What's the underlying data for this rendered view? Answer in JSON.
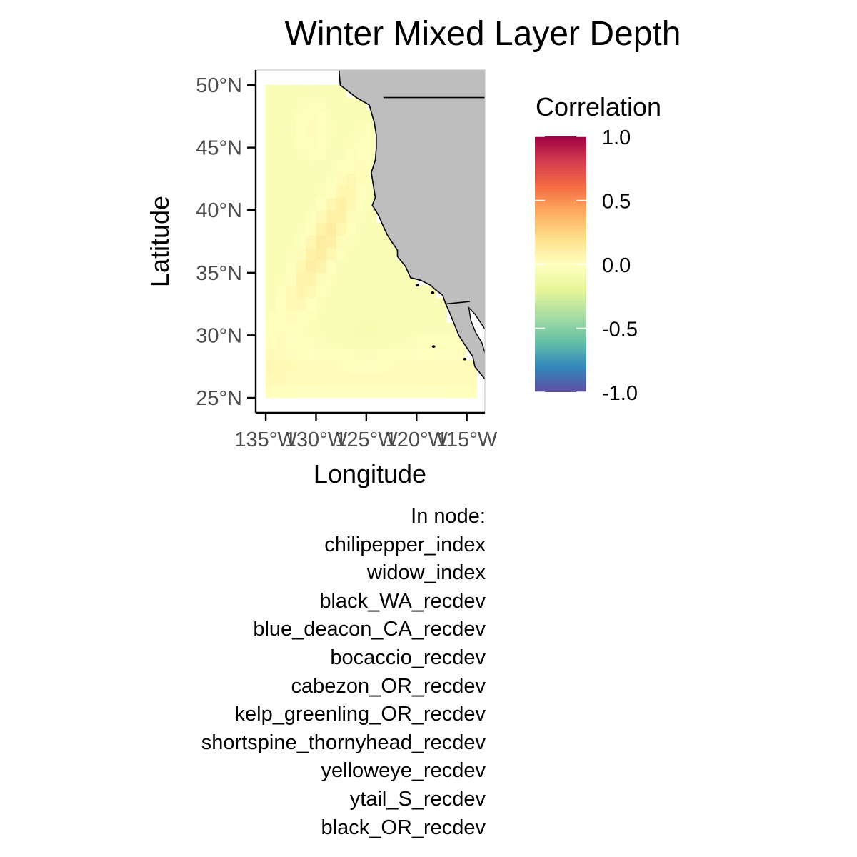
{
  "chart_data": {
    "type": "heatmap",
    "title": "Winter Mixed Layer Depth",
    "xlabel": "Longitude",
    "ylabel": "Latitude",
    "x_ticks": [
      "135°W",
      "130°W",
      "125°W",
      "120°W",
      "115°W"
    ],
    "y_ticks": [
      "25°N",
      "30°N",
      "35°N",
      "40°N",
      "45°N",
      "50°N"
    ],
    "x_range": [
      -136,
      -113.2
    ],
    "y_range": [
      23.8,
      51.2
    ],
    "grid_lon_range": [
      -135,
      -114
    ],
    "grid_lat_range": [
      25,
      50
    ],
    "land_color": "#bebebe",
    "legend": {
      "title": "Correlation",
      "ticks": [
        "1.0",
        "0.5",
        "0.0",
        "-0.5",
        "-1.0"
      ],
      "range": [
        -1,
        1
      ],
      "palette": "Spectral",
      "colors": [
        "#5e4fa2",
        "#3288bd",
        "#66c2a5",
        "#abdda4",
        "#e6f598",
        "#ffffbf",
        "#fee08b",
        "#fdae61",
        "#f46d43",
        "#d53e4f",
        "#9e0142"
      ]
    }
  },
  "caption": {
    "heading": "In node:",
    "items": [
      "chilipepper_index",
      "widow_index",
      "black_WA_recdev",
      "blue_deacon_CA_recdev",
      "bocaccio_recdev",
      "cabezon_OR_recdev",
      "kelp_greenling_OR_recdev",
      "shortspine_thornyhead_recdev",
      "yelloweye_recdev",
      "ytail_S_recdev",
      "black_OR_recdev"
    ]
  }
}
